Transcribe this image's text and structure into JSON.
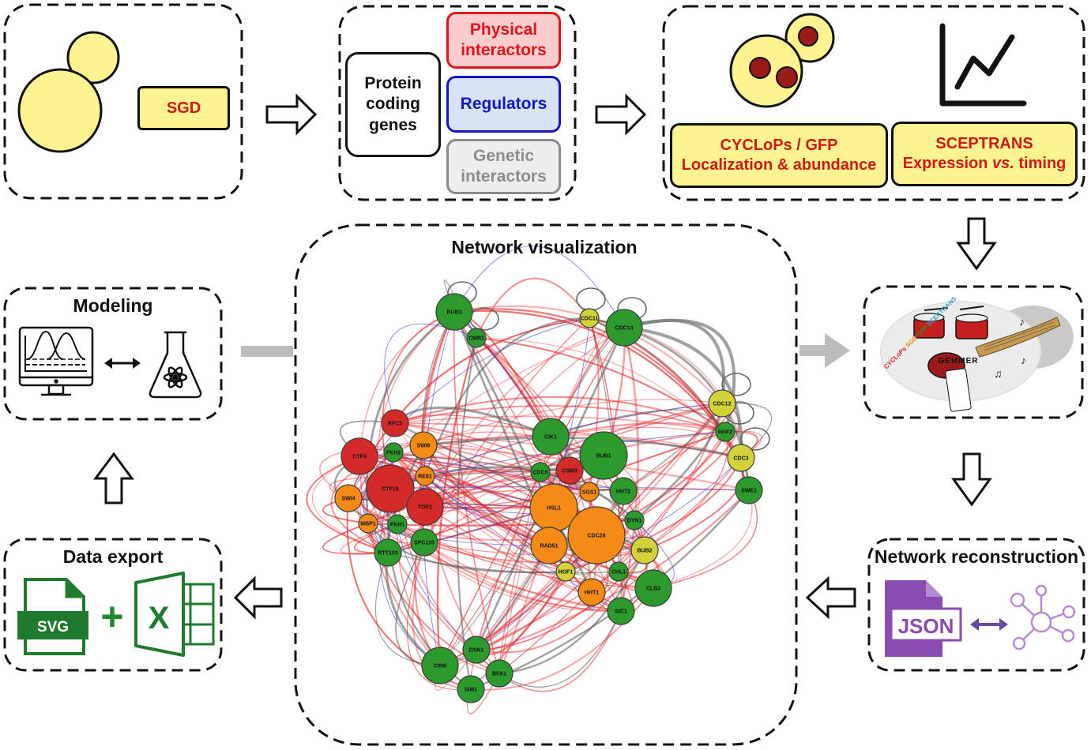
{
  "colors": {
    "yeast": "#fbf490",
    "physical": "#e0141a",
    "regulators": "#1216c8",
    "genetic": "#8c8c8c",
    "node_green": "#2d9a2d",
    "node_red": "#d42a2a",
    "node_orange": "#f58b16",
    "node_yellow": "#d4d23a",
    "json_purple": "#8a4bb0",
    "svg_green": "#1f7a2e",
    "arrow_gray": "#bcbcbc"
  },
  "top_left": {
    "sgd_label": "SGD"
  },
  "top_middle": {
    "protein_label": "Protein coding genes",
    "physical_label": "Physical interactors",
    "regulators_label": "Regulators",
    "genetic_label": "Genetic interactors"
  },
  "top_right": {
    "cyclops_line1": "CYCLoPs / GFP",
    "cyclops_line2": "Localization & abundance",
    "sceptrans_line1": "SCEPTRANS",
    "sceptrans_line2_pre": "Expression ",
    "sceptrans_line2_vs": "vs.",
    "sceptrans_line2_post": " timing"
  },
  "gemmer": {
    "logo_text": "GEMMER",
    "banner_text": "CYCLoPs SGD GFP SCEPTRANS"
  },
  "modeling": {
    "title": "Modeling"
  },
  "network_visualization": {
    "title": "Network visualization",
    "nodes": [
      {
        "id": "BUB3",
        "color": "green",
        "size": "l"
      },
      {
        "id": "CMR1",
        "color": "green",
        "size": "s"
      },
      {
        "id": "CDC11",
        "color": "yellow",
        "size": "s"
      },
      {
        "id": "CDC14",
        "color": "green",
        "size": "l"
      },
      {
        "id": "CDC12",
        "color": "yellow",
        "size": "m"
      },
      {
        "id": "HHF2",
        "color": "green",
        "size": "s"
      },
      {
        "id": "CDC3",
        "color": "yellow",
        "size": "m"
      },
      {
        "id": "SWE1",
        "color": "green",
        "size": "m"
      },
      {
        "id": "RFC5",
        "color": "red",
        "size": "m"
      },
      {
        "id": "CTF4",
        "color": "red",
        "size": "l"
      },
      {
        "id": "FKH2",
        "color": "green",
        "size": "s"
      },
      {
        "id": "SWI6",
        "color": "orange",
        "size": "m"
      },
      {
        "id": "RE81",
        "color": "orange",
        "size": "s"
      },
      {
        "id": "CTF18",
        "color": "red",
        "size": "xl"
      },
      {
        "id": "SWI4",
        "color": "orange",
        "size": "m"
      },
      {
        "id": "TOF1",
        "color": "red",
        "size": "l"
      },
      {
        "id": "MBP1",
        "color": "orange",
        "size": "s"
      },
      {
        "id": "FKH1",
        "color": "green",
        "size": "s"
      },
      {
        "id": "SPC110",
        "color": "green",
        "size": "m"
      },
      {
        "id": "RTT103",
        "color": "green",
        "size": "m"
      },
      {
        "id": "CIK1",
        "color": "green",
        "size": "l"
      },
      {
        "id": "BUB1",
        "color": "green",
        "size": "xl"
      },
      {
        "id": "CDC5",
        "color": "green",
        "size": "s"
      },
      {
        "id": "CSM3",
        "color": "red",
        "size": "m"
      },
      {
        "id": "SGS1",
        "color": "orange",
        "size": "s"
      },
      {
        "id": "HHT2",
        "color": "green",
        "size": "m"
      },
      {
        "id": "HSL1",
        "color": "orange",
        "size": "xl"
      },
      {
        "id": "DYN1",
        "color": "green",
        "size": "s"
      },
      {
        "id": "CDC28",
        "color": "orange",
        "size": "xxl"
      },
      {
        "id": "RAD51",
        "color": "orange",
        "size": "l"
      },
      {
        "id": "BUB2",
        "color": "yellow",
        "size": "m"
      },
      {
        "id": "HOF1",
        "color": "yellow",
        "size": "s"
      },
      {
        "id": "CHL1",
        "color": "green",
        "size": "s"
      },
      {
        "id": "CLB2",
        "color": "green",
        "size": "l"
      },
      {
        "id": "HHT1",
        "color": "orange",
        "size": "m"
      },
      {
        "id": "SIC1",
        "color": "green",
        "size": "m"
      },
      {
        "id": "DSN1",
        "color": "green",
        "size": "m"
      },
      {
        "id": "CIN8",
        "color": "green",
        "size": "l"
      },
      {
        "id": "BFA1",
        "color": "green",
        "size": "m"
      },
      {
        "id": "SIM1",
        "color": "green",
        "size": "m"
      }
    ]
  },
  "data_export": {
    "title": "Data export",
    "svg_label": "SVG",
    "plus": "+",
    "excel_letter": "X"
  },
  "network_reconstruction": {
    "title": "Network reconstruction",
    "json_label": "JSON"
  }
}
